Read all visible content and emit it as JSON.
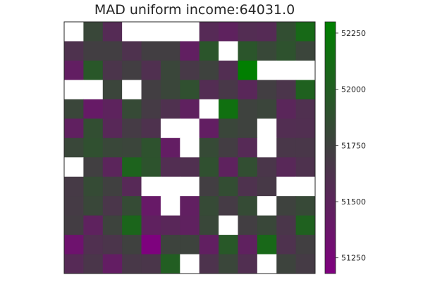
{
  "chart_data": {
    "type": "heatmap",
    "title": "MAD uniform income:64031.0",
    "rows": 13,
    "cols": 13,
    "colorbar": {
      "min": 51180,
      "max": 52300,
      "ticks": [
        51250,
        51500,
        51750,
        52000,
        52250
      ],
      "tick_labels": [
        "51250",
        "51500",
        "51750",
        "52000",
        "52250"
      ],
      "colors": {
        "low": "#800080",
        "mid": "#404040",
        "high": "#008000"
      }
    },
    "empty_color": "#ffffff",
    "values": [
      [
        null,
        51800,
        51560,
        null,
        null,
        null,
        null,
        51550,
        51480,
        51570,
        51560,
        51860,
        52100
      ],
      [
        51620,
        51720,
        51720,
        51620,
        51720,
        51720,
        51450,
        51920,
        null,
        51920,
        51810,
        51900,
        51780
      ],
      [
        51440,
        51940,
        51640,
        51720,
        51600,
        51790,
        51680,
        51760,
        51580,
        52290,
        null,
        null,
        null
      ],
      [
        null,
        null,
        51780,
        null,
        51720,
        51790,
        51880,
        51570,
        51670,
        51520,
        51720,
        51640,
        52030
      ],
      [
        51790,
        51410,
        51490,
        51830,
        51700,
        51610,
        51470,
        null,
        52160,
        51760,
        51780,
        51510,
        51600
      ],
      [
        51460,
        51860,
        51530,
        51700,
        51620,
        null,
        null,
        51440,
        51790,
        51760,
        null,
        51580,
        51590
      ],
      [
        51800,
        51880,
        51800,
        51780,
        51900,
        51430,
        null,
        51830,
        51710,
        51550,
        null,
        51660,
        51660
      ],
      [
        null,
        51730,
        51500,
        52050,
        51910,
        51580,
        51600,
        51880,
        51480,
        51860,
        51650,
        51530,
        51620
      ],
      [
        51690,
        51840,
        51740,
        51540,
        null,
        null,
        null,
        51720,
        51850,
        51620,
        51680,
        null,
        null
      ],
      [
        51700,
        51800,
        51650,
        51840,
        51400,
        null,
        51450,
        51830,
        51700,
        51840,
        null,
        51760,
        51820
      ],
      [
        51710,
        51480,
        51770,
        52060,
        51470,
        51520,
        51470,
        51800,
        null,
        51720,
        51800,
        51650,
        52030
      ],
      [
        51340,
        51600,
        51640,
        51750,
        51200,
        51770,
        51770,
        51450,
        51950,
        51470,
        52090,
        51620,
        51730
      ],
      [
        51550,
        51650,
        51430,
        51670,
        51650,
        52000,
        null,
        51630,
        51790,
        51590,
        null,
        51770,
        51700
      ]
    ]
  }
}
